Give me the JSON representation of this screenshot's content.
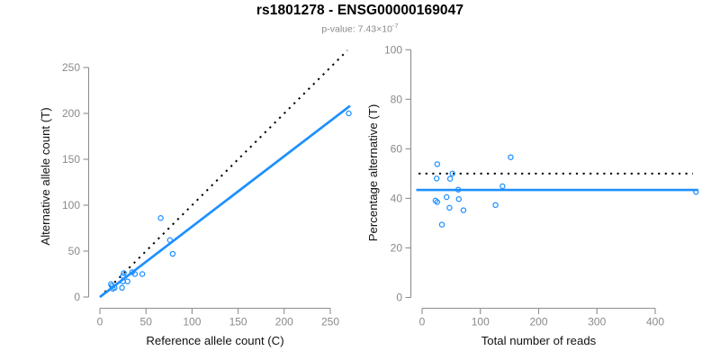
{
  "header": {
    "title": "rs1801278 - ENSG00000169047",
    "pvalue_prefix": "p-value: 7.43×10",
    "pvalue_exponent": "-7"
  },
  "colors": {
    "accent_blue": "#1E90FF",
    "axis_gray": "#8E8E8E",
    "tick_label_gray": "#8A8A8A",
    "axis_title_black": "#111111",
    "dotted_black": "#000000"
  },
  "chart_data": [
    {
      "id": "allele-count-scatter",
      "type": "scatter",
      "xlabel": "Reference allele count (C)",
      "ylabel": "Alternative allele count (T)",
      "xticks": [
        0,
        50,
        100,
        150,
        200,
        250
      ],
      "yticks": [
        0,
        50,
        100,
        150,
        200,
        250
      ],
      "xlim": [
        0,
        272
      ],
      "ylim": [
        0,
        272
      ],
      "grid": false,
      "marker": "open-circle",
      "points": [
        [
          12,
          14
        ],
        [
          13,
          12
        ],
        [
          14,
          9
        ],
        [
          16,
          10
        ],
        [
          24,
          10
        ],
        [
          25,
          17
        ],
        [
          25,
          23
        ],
        [
          26,
          26
        ],
        [
          30,
          17
        ],
        [
          35,
          27
        ],
        [
          38,
          25
        ],
        [
          46,
          25
        ],
        [
          66,
          86
        ],
        [
          76,
          62
        ],
        [
          79,
          47
        ],
        [
          270,
          200
        ]
      ],
      "lines": [
        {
          "name": "identity-line",
          "style": "dotted",
          "slope": 1,
          "intercept": 0,
          "color_key": "dotted_black"
        },
        {
          "name": "fit-line",
          "style": "solid",
          "slope": 0.767,
          "intercept": 0,
          "color_key": "accent_blue"
        }
      ]
    },
    {
      "id": "percentage-alternative-scatter",
      "type": "scatter",
      "xlabel": "Total number of reads",
      "ylabel": "Percentage alternative (T)",
      "xticks": [
        0,
        100,
        200,
        300,
        400
      ],
      "yticks": [
        0,
        20,
        40,
        60,
        80,
        100
      ],
      "xlim": [
        0,
        475
      ],
      "ylim": [
        0,
        100
      ],
      "grid": false,
      "marker": "open-circle",
      "points": [
        [
          26,
          53.8
        ],
        [
          25,
          48.0
        ],
        [
          23,
          39.1
        ],
        [
          26,
          38.5
        ],
        [
          34,
          29.4
        ],
        [
          42,
          40.5
        ],
        [
          48,
          47.9
        ],
        [
          52,
          50.0
        ],
        [
          47,
          36.2
        ],
        [
          62,
          43.5
        ],
        [
          63,
          39.7
        ],
        [
          71,
          35.2
        ],
        [
          152,
          56.6
        ],
        [
          138,
          44.9
        ],
        [
          126,
          37.3
        ],
        [
          470,
          42.6
        ]
      ],
      "lines": [
        {
          "name": "null-line",
          "style": "dotted",
          "slope": 0,
          "intercept": 50,
          "color_key": "dotted_black"
        },
        {
          "name": "fit-line",
          "style": "solid",
          "slope": 0,
          "intercept": 43.4,
          "color_key": "accent_blue"
        }
      ]
    }
  ]
}
